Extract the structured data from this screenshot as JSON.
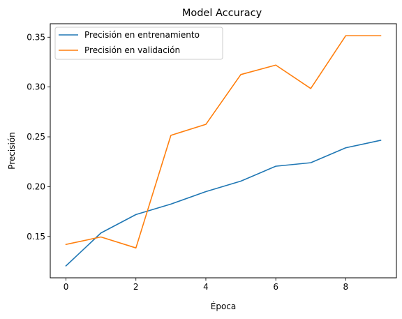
{
  "chart_data": {
    "type": "line",
    "title": "Model Accuracy",
    "xlabel": "Época",
    "ylabel": "Precisión",
    "xlim": [
      -0.45,
      9.45
    ],
    "ylim": [
      0.1085,
      0.3635
    ],
    "xticks": [
      0,
      2,
      4,
      6,
      8
    ],
    "yticks": [
      0.15,
      0.2,
      0.25,
      0.3,
      0.35
    ],
    "ytick_labels": [
      "0.15",
      "0.20",
      "0.25",
      "0.30",
      "0.35"
    ],
    "grid": false,
    "legend_position": "top-left",
    "x": [
      0,
      1,
      2,
      3,
      4,
      5,
      6,
      7,
      8,
      9
    ],
    "series": [
      {
        "name": "Precisión en entrenamiento",
        "color": "#1f77b4",
        "values": [
          0.1205,
          0.1535,
          0.172,
          0.1825,
          0.195,
          0.2055,
          0.2205,
          0.224,
          0.239,
          0.2465
        ]
      },
      {
        "name": "Precisión en validación",
        "color": "#ff7f0e",
        "values": [
          0.142,
          0.1495,
          0.1385,
          0.2515,
          0.2625,
          0.3125,
          0.322,
          0.2985,
          0.3515,
          0.3515
        ]
      }
    ]
  }
}
